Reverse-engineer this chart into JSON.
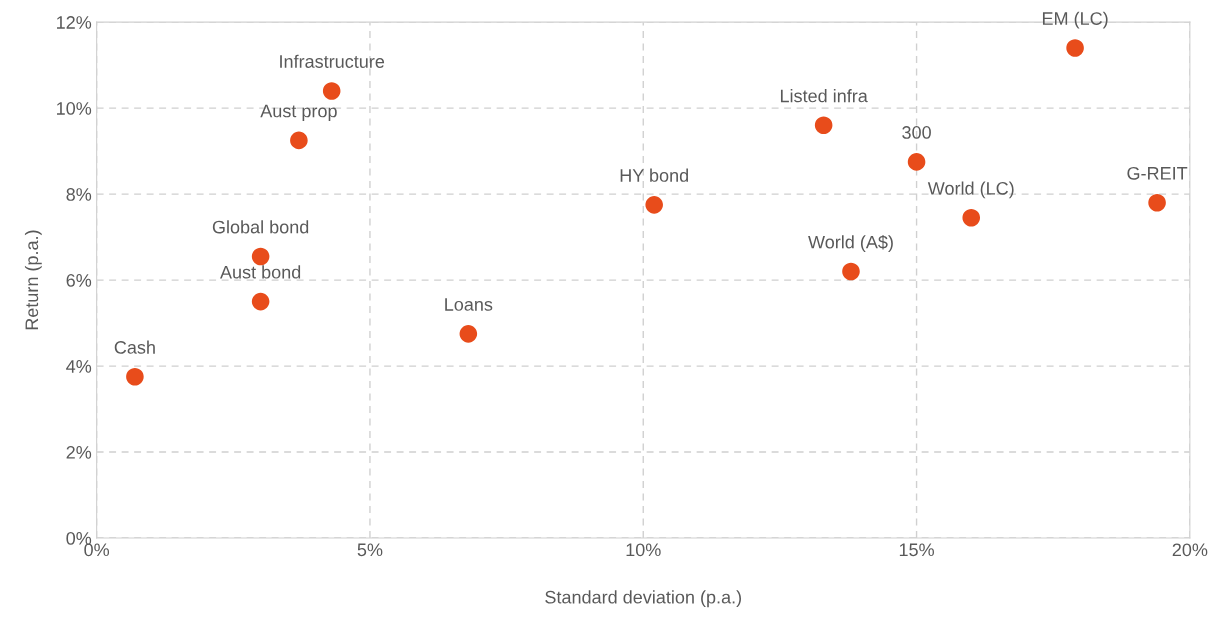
{
  "chart_data": {
    "type": "scatter",
    "xlabel": "Standard deviation (p.a.)",
    "ylabel": "Return (p.a.)",
    "x": [
      0.7,
      3.0,
      3.0,
      3.7,
      4.3,
      6.8,
      10.2,
      13.3,
      13.8,
      15.0,
      16.0,
      17.9,
      19.4
    ],
    "series": [
      {
        "color": "#e84c1b",
        "values": [
          3.75,
          6.55,
          5.5,
          9.25,
          10.4,
          4.75,
          7.75,
          9.6,
          6.2,
          8.75,
          7.45,
          11.4,
          7.8
        ]
      }
    ],
    "annotations": [
      {
        "text": "Cash",
        "x": 0.7,
        "y": 3.75
      },
      {
        "text": "Global bond",
        "x": 3.0,
        "y": 6.55
      },
      {
        "text": "Aust bond",
        "x": 3.0,
        "y": 5.5
      },
      {
        "text": "Aust prop",
        "x": 3.7,
        "y": 9.25
      },
      {
        "text": "Infrastructure",
        "x": 4.3,
        "y": 10.4
      },
      {
        "text": "Loans",
        "x": 6.8,
        "y": 4.75
      },
      {
        "text": "HY bond",
        "x": 10.2,
        "y": 7.75
      },
      {
        "text": "Listed infra",
        "x": 13.3,
        "y": 9.6
      },
      {
        "text": "World (A$)",
        "x": 13.8,
        "y": 6.2
      },
      {
        "text": "300",
        "x": 15.0,
        "y": 8.75
      },
      {
        "text": "World (LC)",
        "x": 16.0,
        "y": 7.45
      },
      {
        "text": "EM (LC)",
        "x": 17.9,
        "y": 11.4
      },
      {
        "text": "G-REIT",
        "x": 19.4,
        "y": 7.8
      }
    ],
    "xlim": [
      0,
      20
    ],
    "ylim": [
      0,
      12
    ],
    "xticks": [
      {
        "value": 0,
        "label": "0%"
      },
      {
        "value": 5,
        "label": "5%"
      },
      {
        "value": 10,
        "label": "10%"
      },
      {
        "value": 15,
        "label": "15%"
      },
      {
        "value": 20,
        "label": "20%"
      }
    ],
    "yticks": [
      {
        "value": 0,
        "label": "0%"
      },
      {
        "value": 2,
        "label": "2%"
      },
      {
        "value": 4,
        "label": "4%"
      },
      {
        "value": 6,
        "label": "6%"
      },
      {
        "value": 8,
        "label": "8%"
      },
      {
        "value": 10,
        "label": "10%"
      },
      {
        "value": 12,
        "label": "12%"
      }
    ],
    "grid": true,
    "marker": "circle",
    "legend": false
  }
}
